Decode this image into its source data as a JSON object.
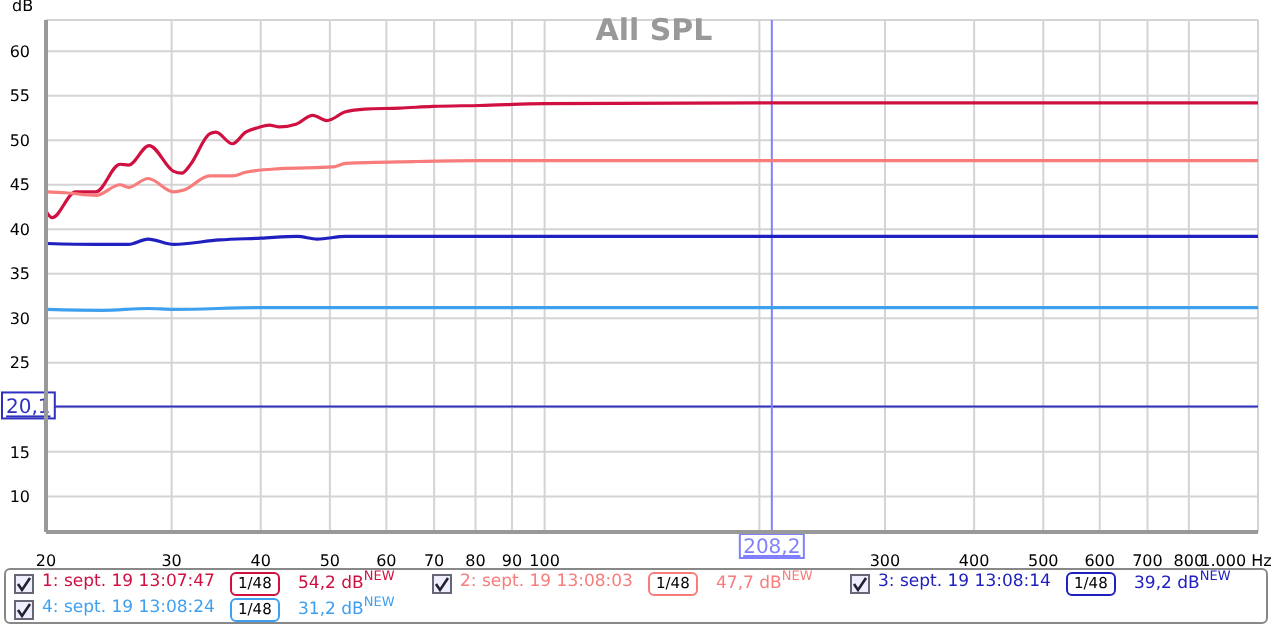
{
  "chart_data": {
    "type": "line",
    "title": "All SPL",
    "ylabel": "dB",
    "log": "x",
    "grid": true,
    "legend": "bottom",
    "marker": "none",
    "line_style": "solid",
    "xlim": [
      20,
      1000
    ],
    "ylim": [
      6,
      63.5
    ],
    "xticks": [
      20,
      30,
      40,
      50,
      60,
      70,
      80,
      90,
      100,
      {
        "value": 200,
        "label": null
      },
      300,
      400,
      500,
      600,
      700,
      800,
      {
        "value": 1000,
        "label": "1.000 Hz"
      }
    ],
    "yticks": [
      10,
      15,
      {
        "value": 20,
        "label": null
      },
      25,
      30,
      35,
      40,
      45,
      50,
      55,
      60
    ],
    "series": [
      {
        "name": "1: sept. 19 13:07:47",
        "color": "#d01040",
        "x": [
          20,
          20.4,
          22,
          23.5,
          25.4,
          26.1,
          27.9,
          30.2,
          31,
          31.9,
          33.9,
          34.6,
          36.5,
          38.1,
          39.6,
          41.1,
          42.5,
          44.8,
          47.3,
          49.5,
          52.6,
          56,
          62.6,
          69.7,
          81.1,
          100,
          200,
          1000
        ],
        "values": [
          42,
          41.3,
          44.2,
          44.2,
          47.3,
          47.2,
          49.4,
          46.5,
          46.3,
          47.3,
          50.7,
          50.9,
          49.6,
          50.9,
          51.4,
          51.7,
          51.5,
          51.8,
          52.8,
          52.2,
          53.2,
          53.5,
          53.6,
          53.8,
          53.9,
          54.1,
          54.2,
          54.2
        ]
      },
      {
        "name": "2: sept. 19 13:08:03",
        "color": "#f87c7c",
        "x": [
          20,
          21.3,
          23.5,
          25.4,
          26.1,
          27.8,
          30.2,
          31.2,
          33.9,
          36.5,
          38.1,
          42.5,
          50.5,
          52.6,
          65.5,
          81.1,
          100,
          200,
          1000
        ],
        "values": [
          44.2,
          44.1,
          43.8,
          45,
          44.7,
          45.7,
          44.2,
          44.4,
          46,
          46,
          46.4,
          46.8,
          47,
          47.4,
          47.6,
          47.7,
          47.7,
          47.7,
          47.7
        ]
      },
      {
        "name": "3: sept. 19 13:08:14",
        "color": "#2020c0",
        "x": [
          20,
          23.5,
          26.1,
          27.8,
          30.2,
          35,
          40,
          45,
          48,
          52.6,
          69.7,
          100,
          200,
          1000
        ],
        "values": [
          38.4,
          38.3,
          38.3,
          38.9,
          38.3,
          38.8,
          39,
          39.2,
          38.9,
          39.2,
          39.2,
          39.2,
          39.2,
          39.2
        ]
      },
      {
        "name": "4: sept. 19 13:08:24",
        "color": "#40a0f0",
        "x": [
          20,
          24,
          27.8,
          30.2,
          40,
          50,
          100,
          200,
          1000
        ],
        "values": [
          31,
          30.9,
          31.1,
          31,
          31.2,
          31.2,
          31.2,
          31.2,
          31.2
        ]
      }
    ],
    "ref_lines": [
      {
        "axis": "y",
        "value": 20.1,
        "label": "20,1",
        "color": "#3030c0"
      },
      {
        "axis": "x",
        "value": 208.2,
        "label": "208,2",
        "color": "#8080ff"
      }
    ],
    "annotations": [
      "1/48",
      "54,2 dB$^{NEW}$",
      "1/48",
      "47,7 dB$^{NEW}$",
      "1/48",
      "39,2 dB$^{NEW}$",
      "1/48",
      "31,2 dB$^{NEW}$"
    ]
  }
}
